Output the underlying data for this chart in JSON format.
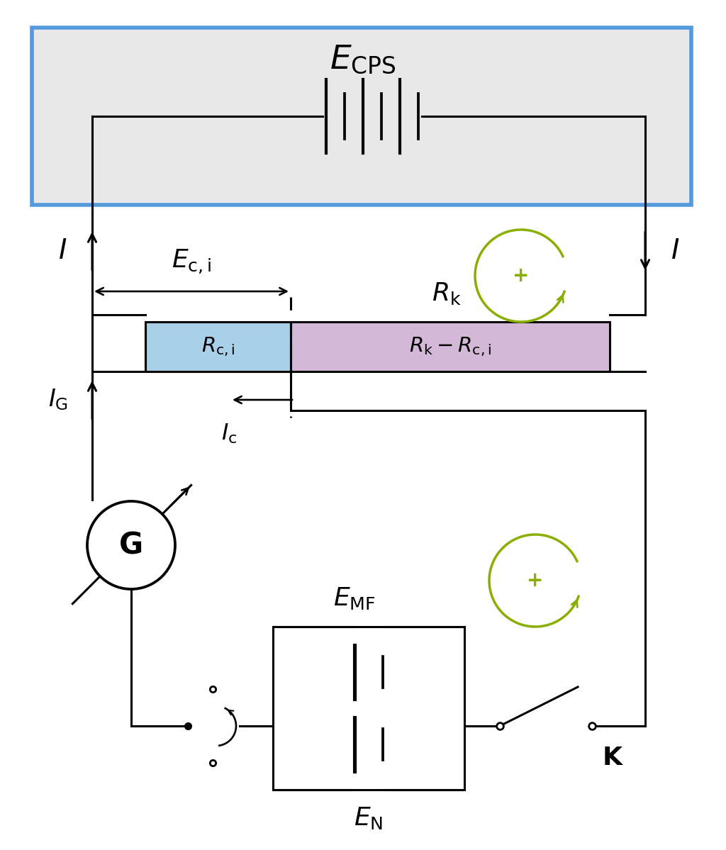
{
  "bg_box_color": "#e8e8e8",
  "bg_box_border": "#5599dd",
  "resistor_blue": "#a8d0e8",
  "resistor_pink": "#d4b8d8",
  "green_color": "#8aaf00",
  "line_color": "#000000",
  "lw": 2.2,
  "fig_w": 10.24,
  "fig_h": 11.99,
  "dpi": 100
}
